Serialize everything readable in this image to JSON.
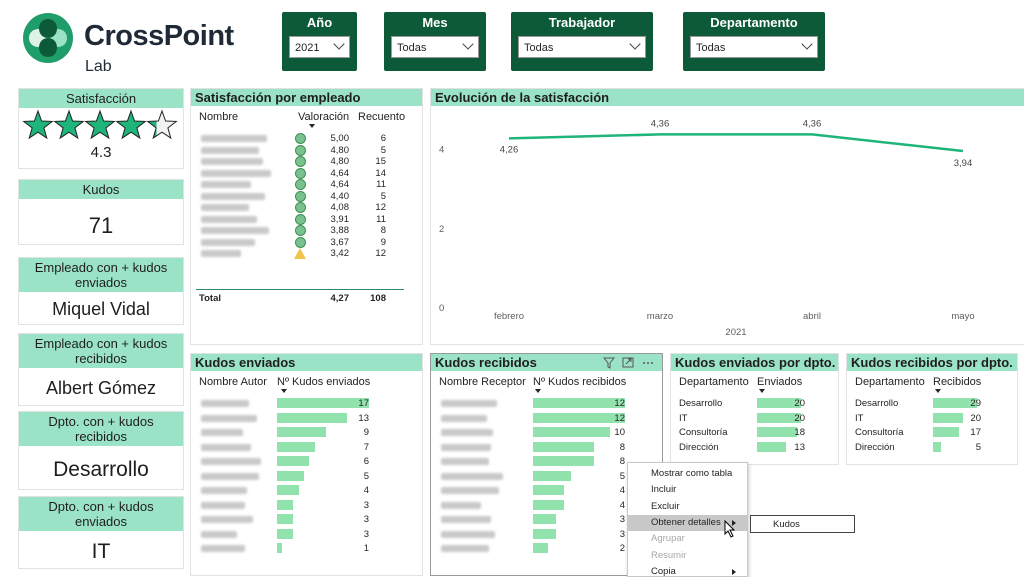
{
  "logo": {
    "name": "CrossPoint",
    "sub": "Lab"
  },
  "slicers": [
    {
      "title": "Año",
      "value": "2021"
    },
    {
      "title": "Mes",
      "value": "Todas"
    },
    {
      "title": "Trabajador",
      "value": "Todas"
    },
    {
      "title": "Departamento",
      "value": "Todas"
    }
  ],
  "cards": {
    "satisfaccion": {
      "title": "Satisfacción",
      "value": "4.3",
      "stars_rating": 4.3
    },
    "kudos": {
      "title": "Kudos",
      "value": "71"
    },
    "top_sent": {
      "title": "Empleado con + kudos enviados",
      "value": "Miquel Vidal"
    },
    "top_received": {
      "title": "Empleado con + kudos recibidos",
      "value": "Albert Gómez"
    },
    "dept_received": {
      "title": "Dpto. con + kudos recibidos",
      "value": "Desarrollo"
    },
    "dept_sent": {
      "title": "Dpto. con + kudos enviados",
      "value": "IT"
    }
  },
  "sat_table": {
    "title": "Satisfacción por empleado",
    "headers": [
      "Nombre",
      "Valoración",
      "Recuento"
    ],
    "rows": [
      {
        "val": "5,00",
        "count": "6",
        "icon": "circle"
      },
      {
        "val": "4,80",
        "count": "5",
        "icon": "circle"
      },
      {
        "val": "4,80",
        "count": "15",
        "icon": "circle"
      },
      {
        "val": "4,64",
        "count": "14",
        "icon": "circle"
      },
      {
        "val": "4,64",
        "count": "11",
        "icon": "circle"
      },
      {
        "val": "4,40",
        "count": "5",
        "icon": "circle"
      },
      {
        "val": "4,08",
        "count": "12",
        "icon": "circle"
      },
      {
        "val": "3,91",
        "count": "11",
        "icon": "circle"
      },
      {
        "val": "3,88",
        "count": "8",
        "icon": "circle"
      },
      {
        "val": "3,67",
        "count": "9",
        "icon": "circle"
      },
      {
        "val": "3,42",
        "count": "12",
        "icon": "triangle"
      }
    ],
    "total_label": "Total",
    "total_val": "4,27",
    "total_count": "108"
  },
  "evolution": {
    "title": "Evolución de la satisfacción",
    "year_label": "2021",
    "chart_data": {
      "type": "line",
      "categories": [
        "febrero",
        "marzo",
        "abril",
        "mayo"
      ],
      "values": [
        4.26,
        4.36,
        4.36,
        3.94
      ],
      "value_labels": [
        "4,26",
        "4,36",
        "4,36",
        "3,94"
      ],
      "yticks": [
        "0",
        "2",
        "4"
      ],
      "ylim": [
        0,
        4.8
      ],
      "line_color": "#1fb47a"
    }
  },
  "kudos_sent": {
    "title": "Kudos enviados",
    "headers": [
      "Nombre Autor",
      "Nº Kudos enviados"
    ],
    "values": [
      "17",
      "13",
      "9",
      "7",
      "6",
      "5",
      "4",
      "3",
      "3",
      "3",
      "1"
    ],
    "max": 17
  },
  "kudos_received": {
    "title": "Kudos recibidos",
    "headers": [
      "Nombre Receptor",
      "Nº Kudos recibidos"
    ],
    "values": [
      "12",
      "12",
      "10",
      "8",
      "8",
      "5",
      "4",
      "4",
      "3",
      "3",
      "2"
    ],
    "max": 12
  },
  "dept_sent_table": {
    "title": "Kudos enviados por dpto.",
    "headers": [
      "Departamento",
      "Enviados"
    ],
    "rows": [
      {
        "name": "Desarrollo",
        "value": "20"
      },
      {
        "name": "IT",
        "value": "20"
      },
      {
        "name": "Consultoría",
        "value": "18"
      },
      {
        "name": "Dirección",
        "value": "13"
      }
    ],
    "max": 20
  },
  "dept_received_table": {
    "title": "Kudos recibidos por dpto.",
    "headers": [
      "Departamento",
      "Recibidos"
    ],
    "rows": [
      {
        "name": "Desarrollo",
        "value": "29"
      },
      {
        "name": "IT",
        "value": "20"
      },
      {
        "name": "Consultoría",
        "value": "17"
      },
      {
        "name": "Dirección",
        "value": "5"
      }
    ],
    "max": 29
  },
  "context_menu": {
    "items": [
      {
        "label": "Mostrar como tabla",
        "disabled": false,
        "arrow": false
      },
      {
        "label": "Incluir",
        "disabled": false,
        "arrow": false
      },
      {
        "label": "Excluir",
        "disabled": false,
        "arrow": false
      },
      {
        "label": "Obtener detalles",
        "disabled": false,
        "arrow": true,
        "highlight": true
      },
      {
        "label": "Agrupar",
        "disabled": true,
        "arrow": false
      },
      {
        "label": "Resumir",
        "disabled": true,
        "arrow": false
      },
      {
        "label": "Copia",
        "disabled": false,
        "arrow": true
      }
    ],
    "submenu": "Kudos"
  },
  "colors": {
    "header_green": "#0c5a37",
    "mint": "#9be3c6",
    "bar": "#92e2ae",
    "star": "#1fb47a"
  }
}
